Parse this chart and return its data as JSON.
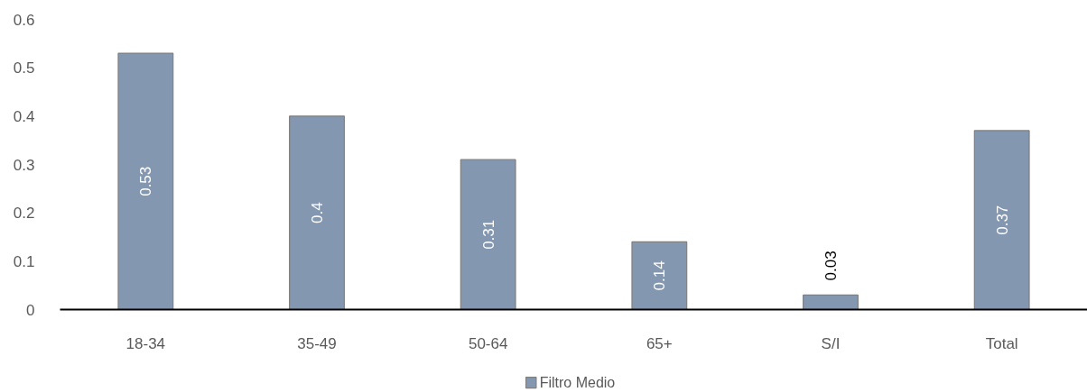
{
  "chart_data": {
    "type": "bar",
    "categories": [
      "18-34",
      "35-49",
      "50-64",
      "65+",
      "S/I",
      "Total"
    ],
    "series": [
      {
        "name": "Filtro Medio",
        "color": "#8497b0",
        "values": [
          0.53,
          0.4,
          0.31,
          0.14,
          0.03,
          0.37
        ]
      }
    ],
    "ylim": [
      0,
      0.6
    ],
    "yticks": [
      0,
      0.1,
      0.2,
      0.3,
      0.4,
      0.5,
      0.6
    ],
    "grid": false,
    "legend": "bottom",
    "data_labels": true
  }
}
